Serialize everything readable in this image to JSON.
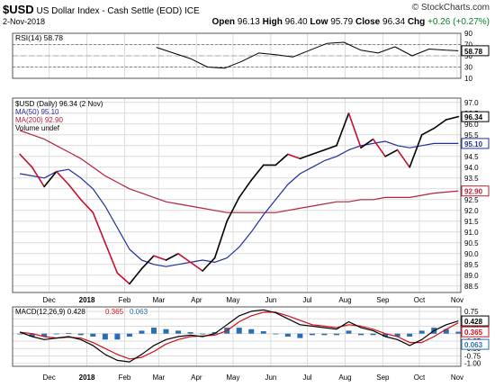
{
  "header": {
    "symbol": "$USD",
    "name": "US Dollar Index - Cash Settle (EOD)",
    "exchange": "ICE",
    "date": "2-Nov-2018",
    "brand": "© StockCharts.com",
    "open_label": "Open",
    "open": "96.13",
    "high_label": "High",
    "high": "96.40",
    "low_label": "Low",
    "low": "95.79",
    "close_label": "Close",
    "close": "96.34",
    "chg_label": "Chg",
    "chg": "+0.26 (+0.27%)"
  },
  "colors": {
    "price": "#000000",
    "price_down": "#c8102e",
    "ma50": "#1f2f9c",
    "ma200": "#b2243b",
    "macd": "#000000",
    "signal": "#d0101a",
    "histogram": "#2a6fb3",
    "rsi": "#000000",
    "rsi_overbought_fill": "#2e8b2e",
    "rsi_oversold_fill": "#c0392b",
    "grid": "#dcdcdc"
  },
  "chart_data": [
    {
      "type": "line",
      "name": "RSI panel",
      "legend": "RSI(14) 58.78",
      "current_value_label": "58.78",
      "ylim": [
        10,
        90
      ],
      "ticks": [
        10,
        30,
        50,
        70,
        90
      ],
      "levels": [
        30,
        70
      ],
      "x": [
        "2018-02-27",
        "2018-03-13",
        "2018-03-27",
        "2018-04-10",
        "2018-04-24",
        "2018-05-08",
        "2018-05-22",
        "2018-06-05",
        "2018-06-19",
        "2018-07-03",
        "2018-07-17",
        "2018-07-31",
        "2018-08-14",
        "2018-08-28",
        "2018-09-11",
        "2018-09-25",
        "2018-10-09",
        "2018-10-23",
        "2018-11-02"
      ],
      "series": [
        {
          "name": "RSI(14)",
          "values": [
            65,
            55,
            45,
            30,
            28,
            40,
            55,
            52,
            48,
            60,
            72,
            74,
            60,
            55,
            66,
            50,
            62,
            60,
            59
          ]
        }
      ]
    },
    {
      "type": "line",
      "name": "Price panel",
      "legend": [
        "$USD (Daily) 96.34 (2 Nov)",
        "MA(50) 95.10",
        "MA(200) 92.90",
        "Volume undef"
      ],
      "value_labels": [
        "96.34",
        "95.10",
        "92.90"
      ],
      "ylim": [
        88.2,
        97.2
      ],
      "ticks": [
        88.5,
        89.0,
        89.5,
        90.0,
        90.5,
        91.0,
        91.5,
        92.0,
        92.5,
        93.0,
        93.5,
        94.0,
        94.5,
        95.0,
        95.5,
        96.0,
        96.5,
        97.0
      ],
      "x": [
        "2017-11-07",
        "2017-11-17",
        "2017-11-27",
        "2017-12-07",
        "2017-12-17",
        "2017-12-27",
        "2018-01-06",
        "2018-01-16",
        "2018-01-26",
        "2018-02-05",
        "2018-02-15",
        "2018-02-25",
        "2018-03-07",
        "2018-03-17",
        "2018-03-27",
        "2018-04-06",
        "2018-04-16",
        "2018-04-26",
        "2018-05-06",
        "2018-05-16",
        "2018-05-26",
        "2018-06-05",
        "2018-06-15",
        "2018-06-25",
        "2018-07-05",
        "2018-07-15",
        "2018-07-25",
        "2018-08-04",
        "2018-08-14",
        "2018-08-24",
        "2018-09-03",
        "2018-09-13",
        "2018-09-23",
        "2018-10-03",
        "2018-10-13",
        "2018-10-23",
        "2018-11-02"
      ],
      "x_tick_labels": [
        "Dec",
        "2018",
        "Feb",
        "Mar",
        "Apr",
        "May",
        "Jun",
        "Jul",
        "Aug",
        "Sep",
        "Oct",
        "Nov"
      ],
      "x_ticks": [
        "2017-12-01",
        "2018-01-01",
        "2018-02-01",
        "2018-03-01",
        "2018-04-01",
        "2018-05-01",
        "2018-06-01",
        "2018-07-01",
        "2018-08-01",
        "2018-09-01",
        "2018-10-01",
        "2018-11-01"
      ],
      "series": [
        {
          "name": "$USD (Daily)",
          "values": [
            94.6,
            94.0,
            93.1,
            93.8,
            93.2,
            92.5,
            91.9,
            90.5,
            89.1,
            88.6,
            89.3,
            89.9,
            89.7,
            90.0,
            89.6,
            89.2,
            89.8,
            91.5,
            92.6,
            93.4,
            94.1,
            94.1,
            94.6,
            94.4,
            94.6,
            94.8,
            95.0,
            96.5,
            94.9,
            95.3,
            94.5,
            94.8,
            94.0,
            95.5,
            95.8,
            96.2,
            96.34
          ]
        },
        {
          "name": "MA(50)",
          "values": [
            93.7,
            93.6,
            93.5,
            93.8,
            93.9,
            93.5,
            93.0,
            92.2,
            91.2,
            90.2,
            89.7,
            89.5,
            89.4,
            89.5,
            89.6,
            89.7,
            89.6,
            89.8,
            90.3,
            91.0,
            91.8,
            92.5,
            93.2,
            93.7,
            94.0,
            94.3,
            94.5,
            94.8,
            95.0,
            95.1,
            95.2,
            95.0,
            94.9,
            95.0,
            95.1,
            95.1,
            95.1
          ]
        },
        {
          "name": "MA(200)",
          "values": [
            95.7,
            95.5,
            95.3,
            95.0,
            94.7,
            94.4,
            94.0,
            93.6,
            93.3,
            93.0,
            92.8,
            92.6,
            92.4,
            92.3,
            92.2,
            92.1,
            92.0,
            91.9,
            91.9,
            91.9,
            91.9,
            91.9,
            92.0,
            92.1,
            92.2,
            92.3,
            92.4,
            92.4,
            92.5,
            92.5,
            92.6,
            92.6,
            92.6,
            92.7,
            92.8,
            92.85,
            92.9
          ]
        }
      ]
    },
    {
      "type": "line",
      "name": "MACD panel",
      "legend": [
        "MACD(12,26,9) 0.428",
        "0.365",
        "0.063"
      ],
      "value_labels": [
        "0.428",
        "0.365",
        "0.063"
      ],
      "ylim": [
        -1.1,
        0.9
      ],
      "ticks": [
        -1.0,
        -0.75,
        -0.5,
        -0.25,
        0.0,
        0.25,
        0.5,
        0.75
      ],
      "x": [
        "2017-11-07",
        "2017-11-17",
        "2017-11-27",
        "2017-12-07",
        "2017-12-17",
        "2017-12-27",
        "2018-01-06",
        "2018-01-16",
        "2018-01-26",
        "2018-02-05",
        "2018-02-15",
        "2018-02-25",
        "2018-03-07",
        "2018-03-17",
        "2018-03-27",
        "2018-04-06",
        "2018-04-16",
        "2018-04-26",
        "2018-05-06",
        "2018-05-16",
        "2018-05-26",
        "2018-06-05",
        "2018-06-15",
        "2018-06-25",
        "2018-07-05",
        "2018-07-15",
        "2018-07-25",
        "2018-08-04",
        "2018-08-14",
        "2018-08-24",
        "2018-09-03",
        "2018-09-13",
        "2018-09-23",
        "2018-10-03",
        "2018-10-13",
        "2018-10-23",
        "2018-11-02"
      ],
      "x_tick_labels": [
        "Dec",
        "2018",
        "Feb",
        "Mar",
        "Apr",
        "May",
        "Jun",
        "Jul",
        "Aug",
        "Sep",
        "Oct",
        "Nov"
      ],
      "x_ticks": [
        "2017-12-01",
        "2018-01-01",
        "2018-02-01",
        "2018-03-01",
        "2018-04-01",
        "2018-05-01",
        "2018-06-01",
        "2018-07-01",
        "2018-08-01",
        "2018-09-01",
        "2018-10-01",
        "2018-11-01"
      ],
      "series": [
        {
          "name": "MACD(12,26,9)",
          "values": [
            0.05,
            -0.1,
            -0.2,
            -0.15,
            -0.1,
            -0.2,
            -0.4,
            -0.7,
            -0.9,
            -0.95,
            -0.7,
            -0.4,
            -0.2,
            -0.1,
            -0.05,
            -0.1,
            0.0,
            0.3,
            0.6,
            0.75,
            0.8,
            0.7,
            0.5,
            0.3,
            0.25,
            0.2,
            0.15,
            0.4,
            0.2,
            0.1,
            -0.1,
            -0.2,
            -0.4,
            -0.2,
            0.1,
            0.3,
            0.428
          ]
        },
        {
          "name": "Signal",
          "values": [
            0.05,
            0.0,
            -0.1,
            -0.15,
            -0.12,
            -0.15,
            -0.3,
            -0.5,
            -0.7,
            -0.85,
            -0.8,
            -0.6,
            -0.35,
            -0.2,
            -0.1,
            -0.08,
            -0.05,
            0.1,
            0.4,
            0.6,
            0.72,
            0.72,
            0.6,
            0.45,
            0.3,
            0.25,
            0.2,
            0.3,
            0.25,
            0.15,
            0.0,
            -0.1,
            -0.3,
            -0.3,
            -0.1,
            0.15,
            0.365
          ]
        },
        {
          "name": "Histogram",
          "values": [
            0.0,
            -0.1,
            -0.1,
            0.0,
            0.02,
            -0.05,
            -0.1,
            -0.2,
            -0.2,
            -0.1,
            0.1,
            0.2,
            0.15,
            0.1,
            0.05,
            -0.02,
            0.05,
            0.2,
            0.2,
            0.15,
            0.08,
            -0.02,
            -0.1,
            -0.15,
            -0.05,
            -0.05,
            -0.05,
            0.1,
            -0.05,
            -0.05,
            -0.1,
            -0.1,
            -0.1,
            0.1,
            0.2,
            0.15,
            0.063
          ]
        }
      ]
    }
  ]
}
